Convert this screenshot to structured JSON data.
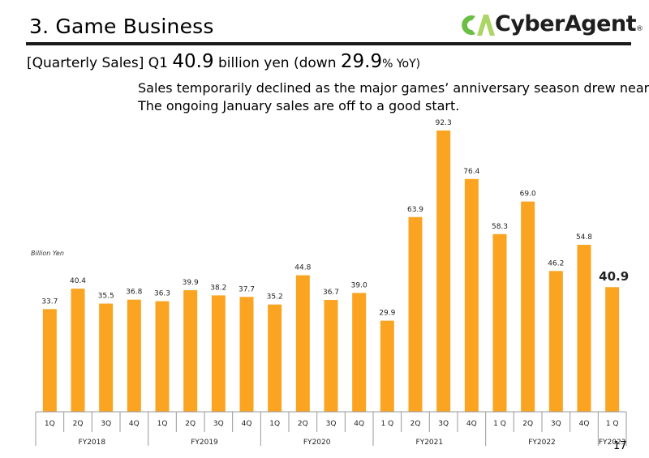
{
  "slide": {
    "title": "3.  Game Business",
    "page_number": "17",
    "logo": {
      "text": "CyberAgent",
      "mark": "CA",
      "registered": "®"
    },
    "subheading": {
      "prefix": "[Quarterly Sales] Q1 ",
      "value": "40.9",
      "middle": " billion yen (down ",
      "pct": "29.9",
      "suffix": "% YoY)"
    },
    "note_lines": [
      "Sales temporarily declined as the major games’ anniversary season drew near.",
      "The ongoing January sales are off to a good start."
    ]
  },
  "colors": {
    "bar": "#FBA422",
    "rule": "#1a1a1a",
    "logo_green": "#6BBE45",
    "logo_light": "#A6D35E"
  },
  "chart_data": {
    "type": "bar",
    "ylabel": "Billion Yen",
    "ylim": [
      0,
      95
    ],
    "categories": [
      "1Q",
      "2Q",
      "3Q",
      "4Q",
      "1Q",
      "2Q",
      "3Q",
      "4Q",
      "1Q",
      "2Q",
      "3Q",
      "4Q",
      "1 Q",
      "2Q",
      "3Q",
      "4Q",
      "1 Q",
      "2Q",
      "3Q",
      "4Q",
      "1 Q"
    ],
    "values": [
      33.7,
      40.4,
      35.5,
      36.8,
      36.3,
      39.9,
      38.2,
      37.7,
      35.2,
      44.8,
      36.7,
      39.0,
      29.9,
      63.9,
      92.3,
      76.4,
      58.3,
      69.0,
      46.2,
      54.8,
      40.9
    ],
    "labels": [
      "33.7",
      "40.4",
      "35.5",
      "36.8",
      "36.3",
      "39.9",
      "38.2",
      "37.7",
      "35.2",
      "44.8",
      "36.7",
      "39.0",
      "29.9",
      "63.9",
      "92.3",
      "76.4",
      "58.3",
      "69.0",
      "46.2",
      "54.8",
      "40.9"
    ],
    "highlight_index": 20,
    "groups": [
      {
        "label": "FY2018",
        "count": 4
      },
      {
        "label": "FY2019",
        "count": 4
      },
      {
        "label": "FY2020",
        "count": 4
      },
      {
        "label": "FY2021",
        "count": 4
      },
      {
        "label": "FY2022",
        "count": 4
      },
      {
        "label": "FY2023",
        "count": 1
      }
    ]
  }
}
